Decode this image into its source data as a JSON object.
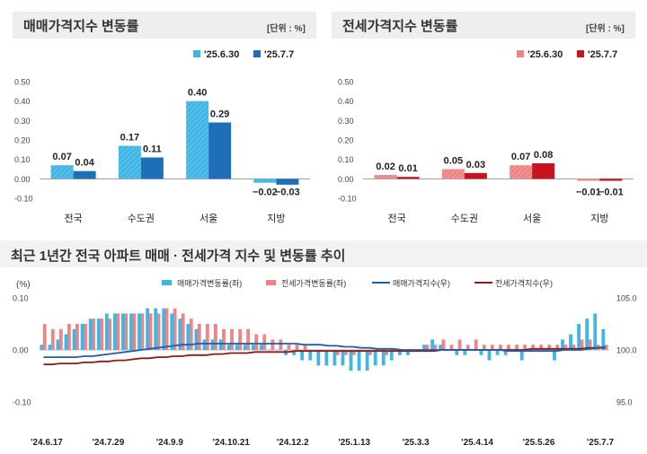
{
  "colors": {
    "sale_prev": "#3fb6e6",
    "sale_curr": "#1f6fb8",
    "jeonse_prev": "#ee8585",
    "jeonse_curr": "#c8141e",
    "sale_index_line": "#1f5ea8",
    "jeonse_index_line": "#8b1a1a",
    "grid": "#d9d9d9"
  },
  "chart_data": [
    {
      "type": "bar",
      "title": "매매가격지수 변동률",
      "unit": "[단위 : %]",
      "categories": [
        "전국",
        "수도권",
        "서울",
        "지방"
      ],
      "series": [
        {
          "name": "'25.6.30",
          "values": [
            0.07,
            0.17,
            0.4,
            -0.02
          ]
        },
        {
          "name": "'25.7.7",
          "values": [
            0.04,
            0.11,
            0.29,
            -0.03
          ]
        }
      ],
      "value_labels": [
        [
          "0.07",
          "0.17",
          "0.40",
          "−0.02"
        ],
        [
          "0.04",
          "0.11",
          "0.29",
          "−0.03"
        ]
      ],
      "yticks": [
        "0.50",
        "0.40",
        "0.30",
        "0.20",
        "0.10",
        "0.00",
        "-0.10"
      ],
      "ylim": [
        -0.1,
        0.5
      ],
      "legend_position": "top-right"
    },
    {
      "type": "bar",
      "title": "전세가격지수 변동률",
      "unit": "[단위 : %]",
      "categories": [
        "전국",
        "수도권",
        "서울",
        "지방"
      ],
      "series": [
        {
          "name": "'25.6.30",
          "values": [
            0.02,
            0.05,
            0.07,
            -0.01
          ]
        },
        {
          "name": "'25.7.7",
          "values": [
            0.01,
            0.03,
            0.08,
            -0.01
          ]
        }
      ],
      "value_labels": [
        [
          "0.02",
          "0.05",
          "0.07",
          "−0.01"
        ],
        [
          "0.01",
          "0.03",
          "0.08",
          "−0.01"
        ]
      ],
      "yticks": [
        "0.50",
        "0.40",
        "0.30",
        "0.20",
        "0.10",
        "0.00",
        "-0.10"
      ],
      "ylim": [
        -0.1,
        0.5
      ],
      "legend_position": "top-right"
    },
    {
      "type": "bar",
      "title": "최근 1년간 전국 아파트 매매 · 전세가격 지수 및 변동률 추이",
      "left_unit": "(%)",
      "left_yticks": [
        "0.10",
        "0.00",
        "-0.10"
      ],
      "left_ylim": [
        -0.1,
        0.1
      ],
      "right_yticks": [
        "105.0",
        "100.0",
        "95.0"
      ],
      "right_ylim": [
        95.0,
        105.0
      ],
      "xticks": [
        "'24.6.17",
        "'24.7.29",
        "'24.9.9",
        "'24.10.21",
        "'24.12.2",
        "'25.1.13",
        "'25.3.3",
        "'25.4.14",
        "'25.5.26",
        "'25.7.7"
      ],
      "legend": [
        "매매가격변동률(좌)",
        "전세가격변동률(좌)",
        "매매가격지수(우)",
        "전세가격지수(우)"
      ],
      "legend_position": "top",
      "sale_change": [
        0.01,
        0.01,
        0.02,
        0.03,
        0.04,
        0.05,
        0.06,
        0.06,
        0.07,
        0.07,
        0.07,
        0.07,
        0.07,
        0.08,
        0.08,
        0.08,
        0.07,
        0.06,
        0.05,
        0.04,
        0.02,
        0.02,
        0.02,
        0.01,
        0.01,
        0.01,
        0.01,
        0.01,
        0.0,
        0.0,
        -0.01,
        -0.01,
        -0.02,
        -0.02,
        -0.03,
        -0.03,
        -0.03,
        -0.03,
        -0.04,
        -0.04,
        -0.04,
        -0.03,
        -0.03,
        -0.02,
        -0.01,
        -0.01,
        0.0,
        0.01,
        0.02,
        0.01,
        0.0,
        -0.01,
        -0.01,
        0.0,
        -0.01,
        -0.02,
        -0.01,
        -0.01,
        0.0,
        -0.02,
        0.0,
        0.0,
        0.0,
        -0.02,
        0.02,
        0.03,
        0.05,
        0.06,
        0.07,
        0.04
      ],
      "jeonse_change": [
        0.05,
        0.04,
        0.04,
        0.05,
        0.05,
        0.05,
        0.06,
        0.06,
        0.06,
        0.07,
        0.07,
        0.07,
        0.07,
        0.07,
        0.07,
        0.08,
        0.08,
        0.07,
        0.06,
        0.05,
        0.05,
        0.05,
        0.04,
        0.04,
        0.04,
        0.04,
        0.03,
        0.03,
        0.02,
        0.02,
        0.01,
        0.01,
        0.01,
        0.0,
        0.0,
        0.0,
        -0.01,
        -0.01,
        -0.01,
        0.0,
        -0.01,
        0.0,
        -0.01,
        0.0,
        0.0,
        0.0,
        0.0,
        0.01,
        0.01,
        0.02,
        0.01,
        0.02,
        0.01,
        0.02,
        0.01,
        0.01,
        0.01,
        0.01,
        0.01,
        0.01,
        0.01,
        0.01,
        0.01,
        0.01,
        0.01,
        0.01,
        0.02,
        0.02,
        0.01,
        0.01
      ],
      "sale_index": [
        99.3,
        99.3,
        99.3,
        99.3,
        99.3,
        99.4,
        99.4,
        99.5,
        99.6,
        99.7,
        99.8,
        99.9,
        100.0,
        100.1,
        100.2,
        100.3,
        100.4,
        100.5,
        100.5,
        100.6,
        100.6,
        100.6,
        100.6,
        100.6,
        100.6,
        100.6,
        100.6,
        100.6,
        100.6,
        100.6,
        100.6,
        100.6,
        100.5,
        100.5,
        100.5,
        100.4,
        100.4,
        100.3,
        100.3,
        100.2,
        100.2,
        100.1,
        100.1,
        100.1,
        100.0,
        100.0,
        100.0,
        100.0,
        100.0,
        100.0,
        100.0,
        100.0,
        100.0,
        100.0,
        100.0,
        100.0,
        100.0,
        99.9,
        99.9,
        99.9,
        99.9,
        99.9,
        99.9,
        99.9,
        100.0,
        100.0,
        100.0,
        100.1,
        100.2,
        100.3
      ],
      "jeonse_index": [
        98.6,
        98.6,
        98.7,
        98.7,
        98.7,
        98.8,
        98.8,
        98.9,
        98.9,
        99.0,
        99.0,
        99.1,
        99.2,
        99.2,
        99.3,
        99.3,
        99.4,
        99.4,
        99.5,
        99.5,
        99.5,
        99.6,
        99.6,
        99.7,
        99.7,
        99.7,
        99.8,
        99.8,
        99.8,
        99.8,
        99.8,
        99.9,
        99.9,
        99.9,
        99.9,
        99.9,
        99.9,
        99.9,
        99.9,
        99.9,
        99.9,
        99.9,
        99.9,
        99.9,
        99.9,
        99.9,
        99.9,
        99.9,
        99.9,
        100.0,
        100.0,
        100.0,
        100.0,
        100.0,
        100.0,
        100.0,
        100.0,
        100.0,
        100.0,
        100.0,
        100.1,
        100.1,
        100.1,
        100.1,
        100.1,
        100.1,
        100.1,
        100.2,
        100.2,
        100.2
      ]
    }
  ]
}
